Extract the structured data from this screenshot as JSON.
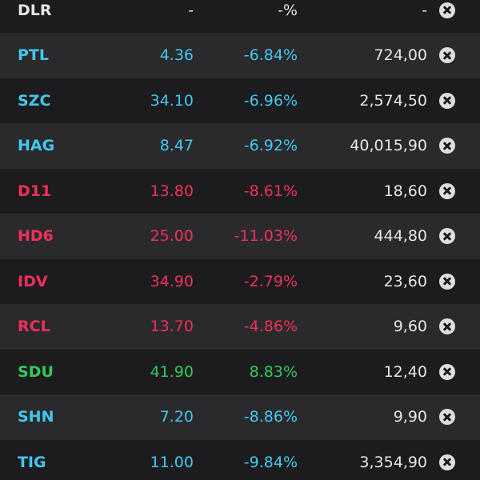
{
  "watchlist": {
    "rows": [
      {
        "symbol": "DLR",
        "price": "-",
        "change": "-%",
        "volume": "-",
        "color": "white"
      },
      {
        "symbol": "PTL",
        "price": "4.36",
        "change": "-6.84%",
        "volume": "724,00",
        "color": "cyan"
      },
      {
        "symbol": "SZC",
        "price": "34.10",
        "change": "-6.96%",
        "volume": "2,574,50",
        "color": "cyan"
      },
      {
        "symbol": "HAG",
        "price": "8.47",
        "change": "-6.92%",
        "volume": "40,015,90",
        "color": "cyan"
      },
      {
        "symbol": "D11",
        "price": "13.80",
        "change": "-8.61%",
        "volume": "18,60",
        "color": "red"
      },
      {
        "symbol": "HD6",
        "price": "25.00",
        "change": "-11.03%",
        "volume": "444,80",
        "color": "red"
      },
      {
        "symbol": "IDV",
        "price": "34.90",
        "change": "-2.79%",
        "volume": "23,60",
        "color": "red"
      },
      {
        "symbol": "RCL",
        "price": "13.70",
        "change": "-4.86%",
        "volume": "9,60",
        "color": "red"
      },
      {
        "symbol": "SDU",
        "price": "41.90",
        "change": "8.83%",
        "volume": "12,40",
        "color": "green"
      },
      {
        "symbol": "SHN",
        "price": "7.20",
        "change": "-8.86%",
        "volume": "9,90",
        "color": "cyan"
      },
      {
        "symbol": "TIG",
        "price": "11.00",
        "change": "-9.84%",
        "volume": "3,354,90",
        "color": "cyan"
      }
    ],
    "remove_icon": "close-circle-icon",
    "colors": {
      "white": "#e6e6e6",
      "cyan": "#42c8f0",
      "red": "#f0305a",
      "green": "#34c759",
      "row_dark": "#1c1c1e",
      "row_light": "#2a2a2d"
    }
  }
}
